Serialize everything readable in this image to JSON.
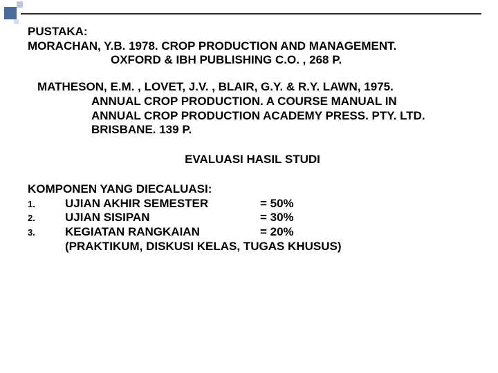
{
  "colors": {
    "background": "#ffffff",
    "text": "#000000",
    "accent_dark": "#4a6a9a",
    "accent_light1": "#b8c4d8",
    "accent_light2": "#d4dce8",
    "rule": "#2a2a2a"
  },
  "typography": {
    "family": "Arial",
    "weight": "bold",
    "size_pt": 13
  },
  "heading": "PUSTAKA:",
  "ref1": {
    "line1": "MORACHAN, Y.B. 1978. CROP PRODUCTION AND MANAGEMENT.",
    "line2": "OXFORD & IBH PUBLISHING C.O. , 268 P."
  },
  "ref2": {
    "line1": "MATHESON, E.M. , LOVET, J.V. , BLAIR, G.Y. & R.Y. LAWN, 1975.",
    "line2": "ANNUAL CROP PRODUCTION. A COURSE MANUAL IN",
    "line3": "ANNUAL CROP PRODUCTION ACADEMY PRESS. PTY. LTD.",
    "line4": "BRISBANE. 139 P."
  },
  "eval_title": "EVALUASI HASIL STUDI",
  "komponen_title": "KOMPONEN YANG DIECALUASI:",
  "items": [
    {
      "num": "1.",
      "label": "UJIAN AKHIR SEMESTER",
      "pct": "= 50%"
    },
    {
      "num": "2.",
      "label": "UJIAN SISIPAN",
      "pct": "= 30%"
    },
    {
      "num": "3.",
      "label": "KEGIATAN RANGKAIAN",
      "pct": "= 20%"
    }
  ],
  "paren": "(PRAKTIKUM, DISKUSI KELAS, TUGAS KHUSUS)"
}
